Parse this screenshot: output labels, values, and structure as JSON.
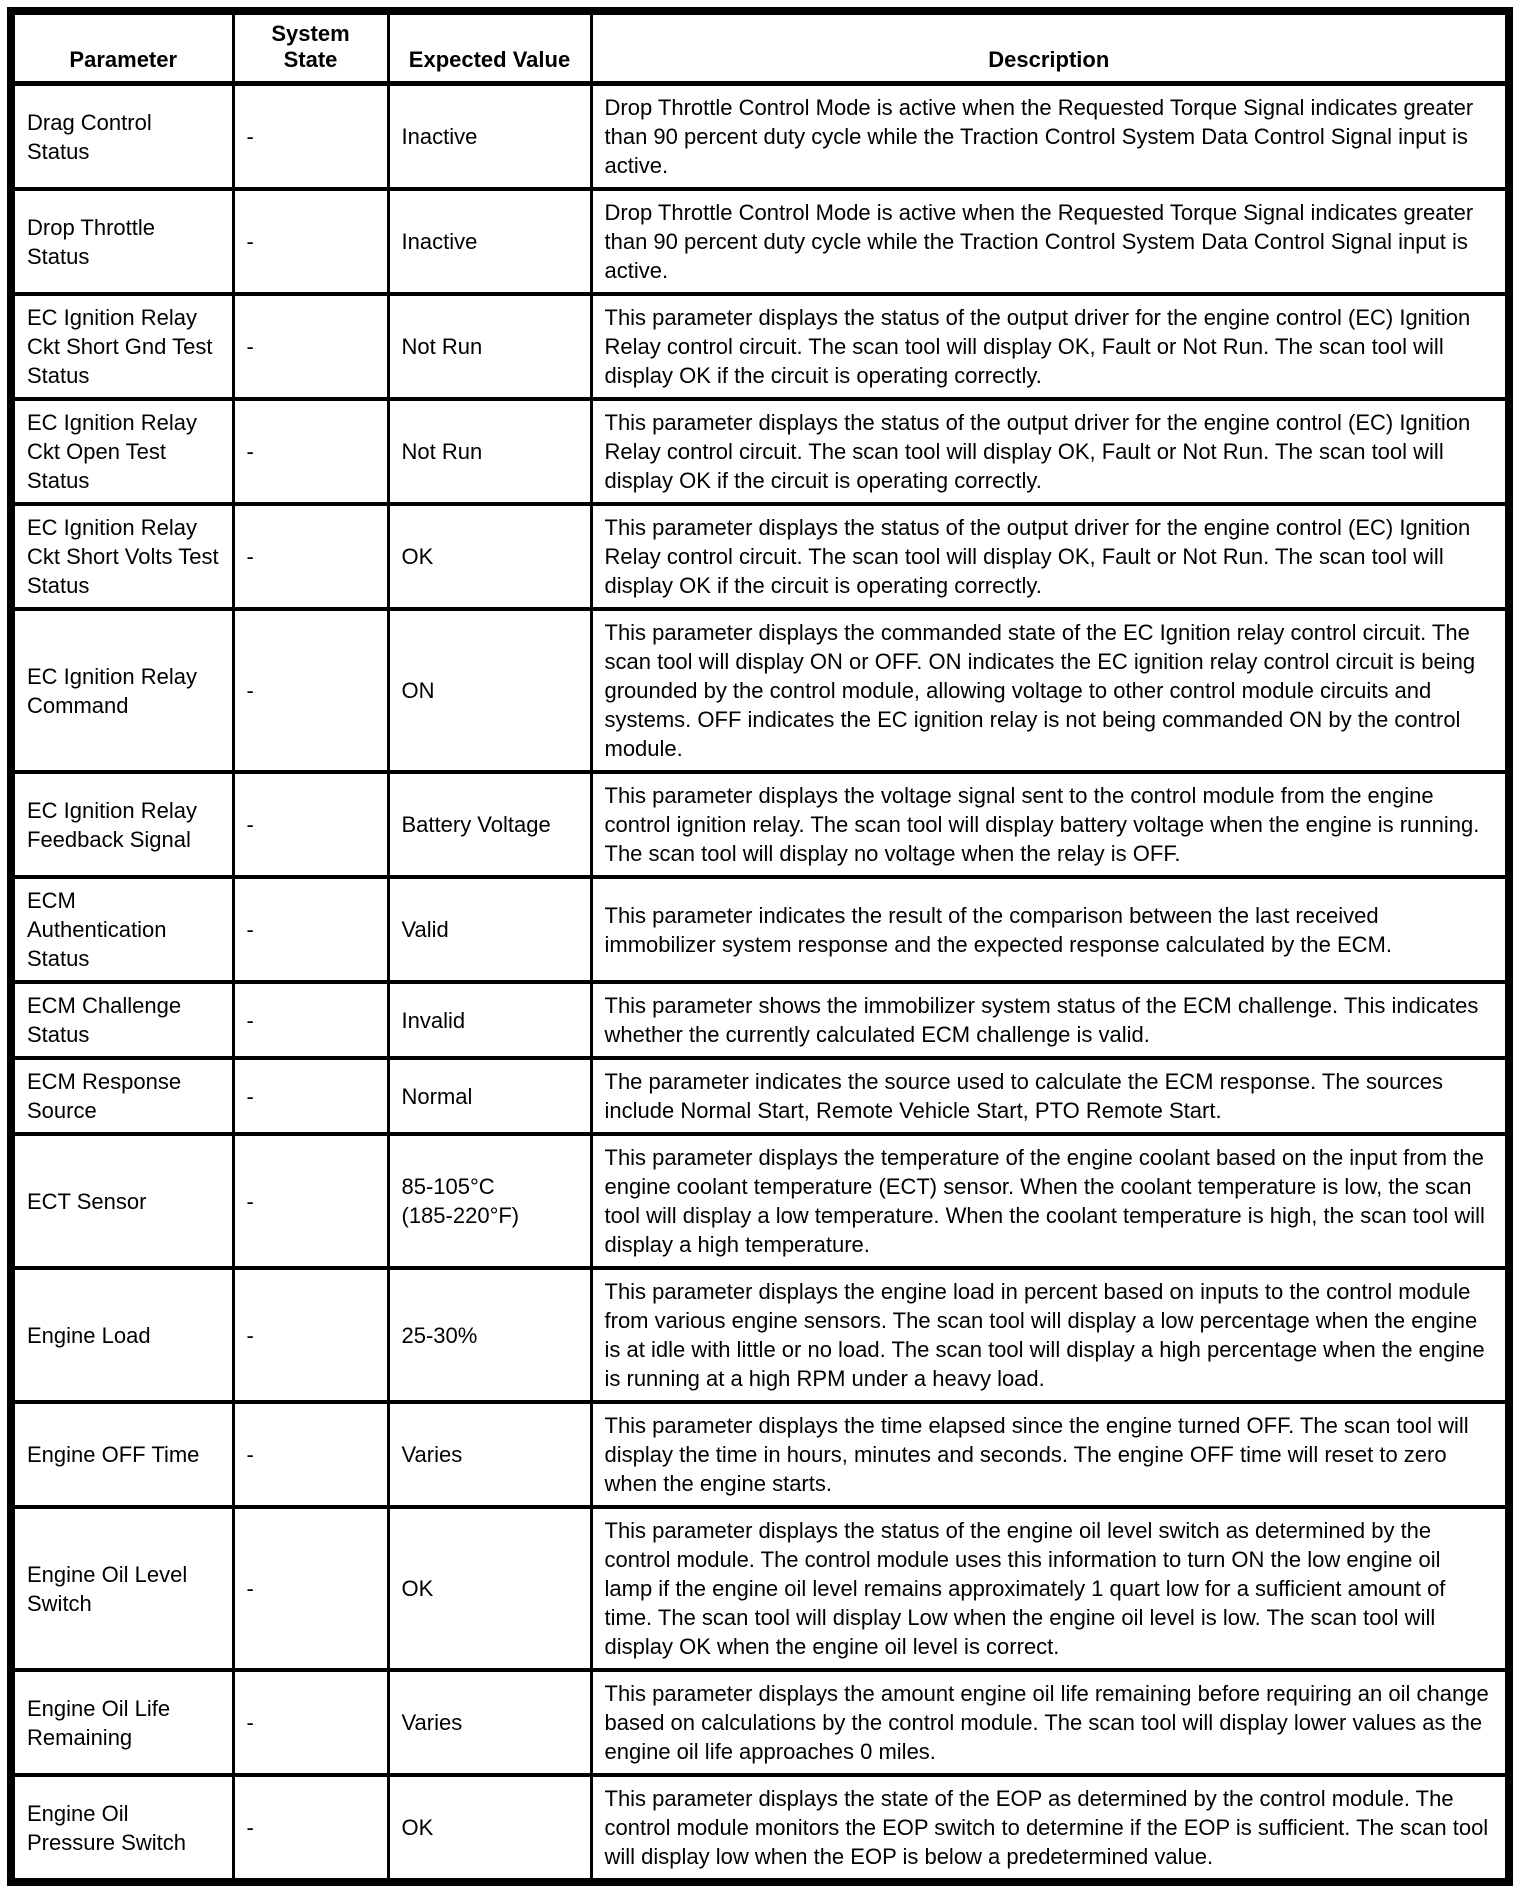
{
  "table": {
    "headers": [
      "Parameter",
      "System State",
      "Expected Value",
      "Description"
    ],
    "rows": [
      {
        "parameter": "Drag Control Status",
        "system_state": "-",
        "expected_value": "Inactive",
        "description": "Drop Throttle Control Mode is active when the Requested Torque Signal indicates greater than 90 percent duty cycle while the Traction Control System Data Control Signal input is active."
      },
      {
        "parameter": "Drop Throttle Status",
        "system_state": "-",
        "expected_value": "Inactive",
        "description": "Drop Throttle Control Mode is active when the Requested Torque Signal indicates greater than 90 percent duty cycle while the Traction Control System Data Control Signal input is active."
      },
      {
        "parameter": "EC Ignition Relay Ckt Short Gnd Test Status",
        "system_state": "-",
        "expected_value": "Not Run",
        "description": "This parameter displays the status of the output driver for the engine control (EC) Ignition Relay control circuit. The scan tool will display OK, Fault or Not Run. The scan tool will display OK if the circuit is operating correctly."
      },
      {
        "parameter": "EC Ignition Relay Ckt Open Test Status",
        "system_state": "-",
        "expected_value": "Not Run",
        "description": "This parameter displays the status of the output driver for the engine control (EC) Ignition Relay control circuit. The scan tool will display OK, Fault or Not Run. The scan tool will display OK if the circuit is operating correctly."
      },
      {
        "parameter": "EC Ignition Relay Ckt Short Volts Test Status",
        "system_state": "-",
        "expected_value": "OK",
        "description": "This parameter displays the status of the output driver for the engine control (EC) Ignition Relay control circuit. The scan tool will display OK, Fault or Not Run. The scan tool will display OK if the circuit is operating correctly."
      },
      {
        "parameter": "EC Ignition Relay Command",
        "system_state": "-",
        "expected_value": "ON",
        "description": "This parameter displays the commanded state of the EC Ignition relay control circuit. The scan tool will display ON or OFF. ON indicates the EC ignition relay control circuit is being grounded by the control module, allowing voltage to other control module circuits and systems. OFF indicates the EC ignition relay is not being commanded ON by the control module."
      },
      {
        "parameter": "EC Ignition Relay Feedback Signal",
        "system_state": "-",
        "expected_value": "Battery Voltage",
        "description": "This parameter displays the voltage signal sent to the control module from the engine control ignition relay. The scan tool will display battery voltage when the engine is running. The scan tool will display no voltage when the relay is OFF."
      },
      {
        "parameter": "ECM Authentication Status",
        "system_state": "-",
        "expected_value": "Valid",
        "description": "This parameter indicates the result of the comparison between the last received immobilizer system response and the expected response calculated by the ECM."
      },
      {
        "parameter": "ECM Challenge Status",
        "system_state": "-",
        "expected_value": "Invalid",
        "description": "This parameter shows the immobilizer system status of the ECM challenge. This indicates whether the currently calculated ECM challenge is valid."
      },
      {
        "parameter": "ECM Response Source",
        "system_state": "-",
        "expected_value": "Normal",
        "description": "The parameter indicates the source used to calculate the ECM response. The sources include Normal Start, Remote Vehicle Start, PTO Remote Start."
      },
      {
        "parameter": "ECT Sensor",
        "system_state": "-",
        "expected_value": "85-105°C\n(185-220°F)",
        "description": "This parameter displays the temperature of the engine coolant based on the input from the engine coolant temperature (ECT) sensor. When the coolant temperature is low, the scan tool will display a low temperature. When the coolant temperature is high, the scan tool will display a high temperature."
      },
      {
        "parameter": "Engine Load",
        "system_state": "-",
        "expected_value": "25-30%",
        "description": "This parameter displays the engine load in percent based on inputs to the control module from various engine sensors. The scan tool will display a low percentage when the engine is at idle with little or no load. The scan tool will display a high percentage when the engine is running at a high RPM under a heavy load."
      },
      {
        "parameter": "Engine OFF Time",
        "system_state": "-",
        "expected_value": "Varies",
        "description": "This parameter displays the time elapsed since the engine turned OFF. The scan tool will display the time in hours, minutes and seconds. The engine OFF time will reset to zero when the engine starts."
      },
      {
        "parameter": "Engine Oil Level Switch",
        "system_state": "-",
        "expected_value": "OK",
        "description": "This parameter displays the status of the engine oil level switch as determined by the control module. The control module uses this information to turn ON the low engine oil lamp if the engine oil level remains approximately 1 quart low for a sufficient amount of time. The scan tool will display Low when the engine oil level is low. The scan tool will display OK when the engine oil level is correct."
      },
      {
        "parameter": "Engine Oil Life Remaining",
        "system_state": "-",
        "expected_value": "Varies",
        "description": "This parameter displays the amount engine oil life remaining before requiring an oil change based on calculations by the control module. The scan tool will display lower values as the engine oil life approaches 0 miles."
      },
      {
        "parameter": "Engine Oil Pressure Switch",
        "system_state": "-",
        "expected_value": "OK",
        "description": "This parameter displays the state of the EOP as determined by the control module. The control module monitors the EOP switch to determine if the EOP is sufficient. The scan tool will display low when the EOP is below a predetermined value."
      }
    ]
  }
}
